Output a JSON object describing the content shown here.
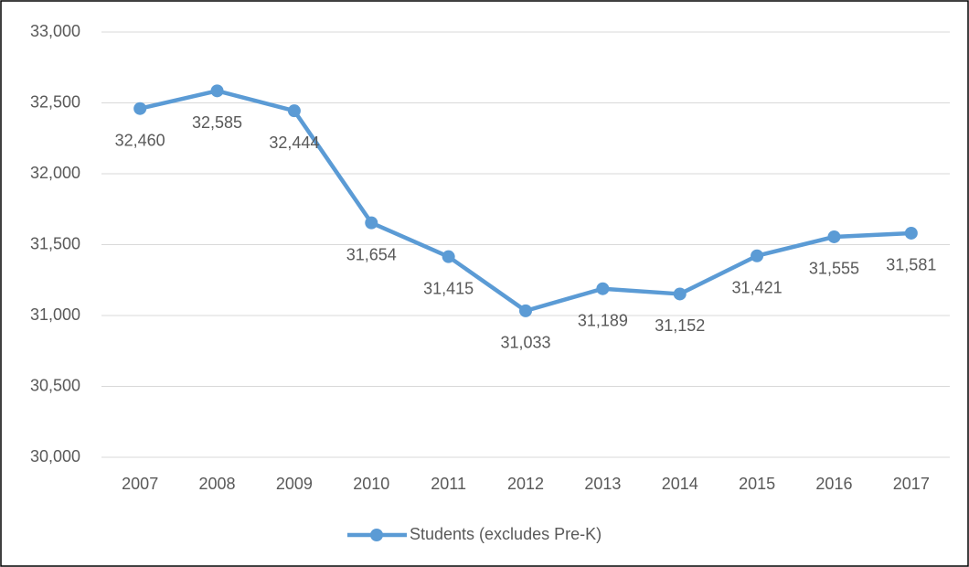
{
  "chart_data": {
    "type": "line",
    "categories": [
      "2007",
      "2008",
      "2009",
      "2010",
      "2011",
      "2012",
      "2013",
      "2014",
      "2015",
      "2016",
      "2017"
    ],
    "series": [
      {
        "name": "Students (excludes Pre-K)",
        "color": "#5b9bd5",
        "values": [
          32460,
          32585,
          32444,
          31654,
          31415,
          31033,
          31189,
          31152,
          31421,
          31555,
          31581
        ],
        "value_labels": [
          "32,460",
          "32,585",
          "32,444",
          "31,654",
          "31,415",
          "31,033",
          "31,189",
          "31,152",
          "31,421",
          "31,555",
          "31,581"
        ]
      }
    ],
    "ylim": [
      30000,
      33000
    ],
    "yticks": [
      {
        "value": 30000,
        "label": "30,000"
      },
      {
        "value": 30500,
        "label": "30,500"
      },
      {
        "value": 31000,
        "label": "31,000"
      },
      {
        "value": 31500,
        "label": "31,500"
      },
      {
        "value": 32000,
        "label": "32,000"
      },
      {
        "value": 32500,
        "label": "32,500"
      },
      {
        "value": 33000,
        "label": "33,000"
      }
    ],
    "grid": true,
    "legend": "bottom"
  }
}
